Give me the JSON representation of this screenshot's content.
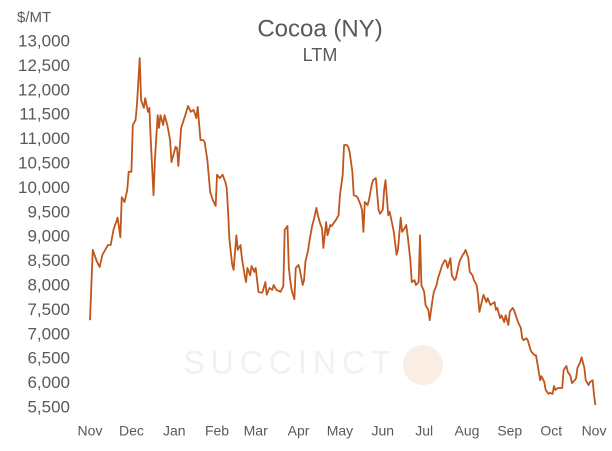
{
  "chart_data": {
    "type": "line",
    "title": "Cocoa (NY)",
    "subtitle": "LTM",
    "y_label": "$/MT",
    "watermark": "SUCCINCT",
    "xlim": [
      0,
      366
    ],
    "xticks": [
      {
        "value": 0,
        "label": "Nov"
      },
      {
        "value": 30,
        "label": "Dec"
      },
      {
        "value": 61,
        "label": "Jan"
      },
      {
        "value": 92,
        "label": "Feb"
      },
      {
        "value": 120,
        "label": "Mar"
      },
      {
        "value": 151,
        "label": "Apr"
      },
      {
        "value": 181,
        "label": "May"
      },
      {
        "value": 212,
        "label": "Jun"
      },
      {
        "value": 242,
        "label": "Jul"
      },
      {
        "value": 273,
        "label": "Aug"
      },
      {
        "value": 304,
        "label": "Sep"
      },
      {
        "value": 334,
        "label": "Oct"
      },
      {
        "value": 365,
        "label": "Nov"
      }
    ],
    "ylim": [
      5500,
      13000
    ],
    "yticks": [
      {
        "value": 5500,
        "label": "5,500"
      },
      {
        "value": 6000,
        "label": "6,000"
      },
      {
        "value": 6500,
        "label": "6,500"
      },
      {
        "value": 7000,
        "label": "7,000"
      },
      {
        "value": 7500,
        "label": "7,500"
      },
      {
        "value": 8000,
        "label": "8,000"
      },
      {
        "value": 8500,
        "label": "8,500"
      },
      {
        "value": 9000,
        "label": "9,000"
      },
      {
        "value": 9500,
        "label": "9,500"
      },
      {
        "value": 10000,
        "label": "10,000"
      },
      {
        "value": 10500,
        "label": "10,500"
      },
      {
        "value": 11000,
        "label": "11,000"
      },
      {
        "value": 11500,
        "label": "11,500"
      },
      {
        "value": 12000,
        "label": "12,000"
      },
      {
        "value": 12500,
        "label": "12,500"
      },
      {
        "value": 13000,
        "label": "13,000"
      }
    ],
    "grid": false,
    "series": [
      {
        "color": "#c0561c",
        "x": [
          0,
          1,
          2,
          5,
          7,
          9,
          13,
          15,
          17,
          20,
          22,
          23,
          25,
          27,
          28,
          30,
          31,
          33,
          34,
          36,
          37,
          39,
          40,
          42,
          43,
          44,
          46,
          47,
          49,
          50,
          51,
          53,
          54,
          56,
          58,
          59,
          62,
          63,
          64,
          66,
          69,
          71,
          73,
          75,
          77,
          78,
          80,
          82,
          83,
          85,
          87,
          89,
          91,
          92,
          94,
          96,
          98,
          99,
          100,
          101,
          103,
          104,
          106,
          107,
          109,
          110,
          112,
          113,
          114,
          116,
          117,
          119,
          120,
          122,
          124,
          125,
          127,
          128,
          130,
          132,
          133,
          135,
          138,
          140,
          141,
          143,
          144,
          145,
          146,
          148,
          149,
          151,
          152,
          154,
          155,
          156,
          158,
          159,
          161,
          162,
          164,
          165,
          167,
          168,
          169,
          171,
          172,
          174,
          175,
          177,
          178,
          180,
          181,
          183,
          184,
          186,
          187,
          188,
          190,
          191,
          193,
          194,
          196,
          197,
          198,
          199,
          201,
          202,
          204,
          205,
          207,
          209,
          210,
          212,
          213,
          214,
          216,
          217,
          219,
          220,
          222,
          223,
          225,
          226,
          228,
          229,
          230,
          232,
          233,
          235,
          236,
          238,
          239,
          240,
          242,
          243,
          245,
          246,
          248,
          249,
          251,
          252,
          254,
          255,
          257,
          258,
          259,
          261,
          262,
          264,
          265,
          267,
          268,
          270,
          271,
          272,
          274,
          275,
          277,
          278,
          280,
          281,
          282,
          284,
          285,
          287,
          288,
          290,
          291,
          293,
          294,
          295,
          297,
          298,
          300,
          301,
          303,
          304,
          306,
          307,
          309,
          310,
          312,
          313,
          314,
          316,
          317,
          319,
          320,
          322,
          323,
          325,
          326,
          327,
          329,
          330,
          332,
          333,
          335,
          336,
          337,
          339,
          340,
          342,
          343,
          345,
          346,
          348,
          349,
          351,
          352,
          353,
          355,
          356,
          358,
          359,
          361,
          362,
          364,
          365,
          366
        ],
        "values": [
          7300,
          8020,
          8740,
          8500,
          8390,
          8640,
          8840,
          8840,
          9150,
          9400,
          9000,
          9820,
          9720,
          9970,
          10340,
          10340,
          11300,
          11400,
          11710,
          12670,
          11810,
          11650,
          11850,
          11570,
          11650,
          10990,
          9860,
          10580,
          11500,
          11240,
          11500,
          11300,
          11500,
          11300,
          10990,
          10540,
          10850,
          10830,
          10460,
          11240,
          11500,
          11690,
          11570,
          11610,
          11440,
          11670,
          10990,
          10990,
          10950,
          10580,
          9930,
          9760,
          9640,
          10280,
          10210,
          10280,
          10130,
          10010,
          9520,
          8940,
          8430,
          8330,
          9040,
          8740,
          8840,
          8570,
          8220,
          8080,
          8370,
          8220,
          8410,
          8290,
          8370,
          7880,
          7860,
          7880,
          8080,
          7820,
          7960,
          7920,
          8020,
          7920,
          7880,
          8000,
          9150,
          9230,
          8370,
          8120,
          7920,
          7730,
          8370,
          8430,
          8330,
          8020,
          8120,
          8500,
          8740,
          8940,
          9250,
          9350,
          9600,
          9450,
          9250,
          9190,
          8780,
          9310,
          9040,
          9250,
          9230,
          9310,
          9350,
          9450,
          9860,
          10280,
          10890,
          10890,
          10850,
          10750,
          10340,
          9860,
          9840,
          9800,
          9660,
          9560,
          9110,
          9720,
          9660,
          9760,
          10070,
          10170,
          10210,
          9560,
          9480,
          9560,
          9970,
          10170,
          9450,
          9520,
          9250,
          9110,
          8640,
          8740,
          9400,
          9110,
          9190,
          9250,
          9040,
          8530,
          8080,
          8120,
          8020,
          8080,
          9040,
          8020,
          7880,
          7610,
          7510,
          7300,
          7710,
          7880,
          8020,
          8160,
          8330,
          8430,
          8530,
          8500,
          8370,
          8570,
          8220,
          8120,
          8160,
          8430,
          8530,
          8640,
          8680,
          8740,
          8570,
          8290,
          8220,
          8120,
          8020,
          7800,
          7470,
          7710,
          7820,
          7670,
          7750,
          7610,
          7630,
          7670,
          7510,
          7550,
          7340,
          7400,
          7260,
          7400,
          7200,
          7470,
          7550,
          7510,
          7340,
          7260,
          7140,
          6930,
          6890,
          6930,
          6890,
          6690,
          6640,
          6580,
          6580,
          6240,
          6070,
          6150,
          6030,
          5870,
          5790,
          5810,
          5790,
          5950,
          5870,
          5910,
          5910,
          5910,
          6280,
          6360,
          6240,
          6150,
          6010,
          6070,
          6110,
          6320,
          6440,
          6540,
          6320,
          6070,
          5970,
          6030,
          6070,
          5770,
          5560
        ]
      }
    ]
  }
}
